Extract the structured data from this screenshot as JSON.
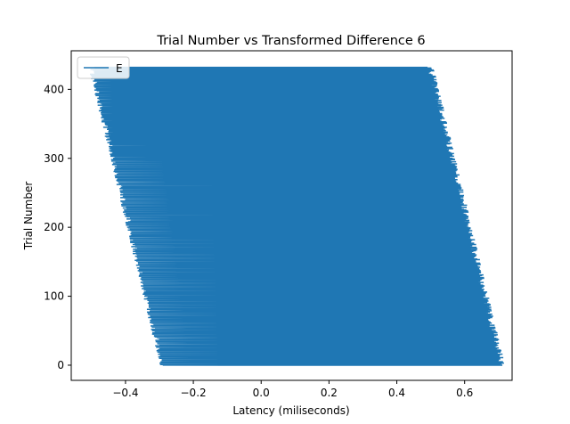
{
  "chart_data": {
    "type": "line",
    "title": "Trial Number vs Transformed Difference 6",
    "xlabel": "Latency (miliseconds)",
    "ylabel": "Trial Number",
    "xlim": [
      -0.56,
      0.74
    ],
    "ylim": [
      -22,
      456
    ],
    "xticks": [
      -0.4,
      -0.2,
      0.0,
      0.2,
      0.4,
      0.6
    ],
    "xtick_labels": [
      "−0.4",
      "−0.2",
      "0.0",
      "0.2",
      "0.4",
      "0.6"
    ],
    "yticks": [
      0,
      100,
      200,
      300,
      400
    ],
    "ytick_labels": [
      "0",
      "100",
      "200",
      "300",
      "400"
    ],
    "grid": false,
    "legend_position": "top-left",
    "color": "#1f77b4",
    "series": [
      {
        "name": "E",
        "description_pattern": "zig-zag between left edge and right edge for each trial",
        "trial_start": 0,
        "trial_end": 432,
        "left_edge_at_start": -0.29,
        "left_edge_at_end": -0.5,
        "right_edge_at_start": 0.71,
        "right_edge_at_end": 0.5
      }
    ]
  }
}
